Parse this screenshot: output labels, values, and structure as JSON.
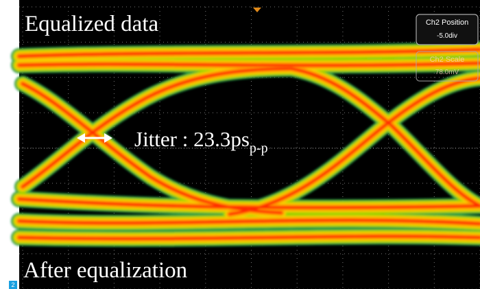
{
  "annotations": {
    "top_label": "Equalized data",
    "jitter": "Jitter : 23.3ps",
    "jitter_subscript": "p-p",
    "bottom_label": "After equalization"
  },
  "scope_ui": {
    "position_box": {
      "title": "Ch2 Position",
      "value": "-5.0div"
    },
    "scale_box": {
      "title": "Ch2 Scale",
      "value": "78.0mV"
    },
    "channel_badge": "2"
  }
}
